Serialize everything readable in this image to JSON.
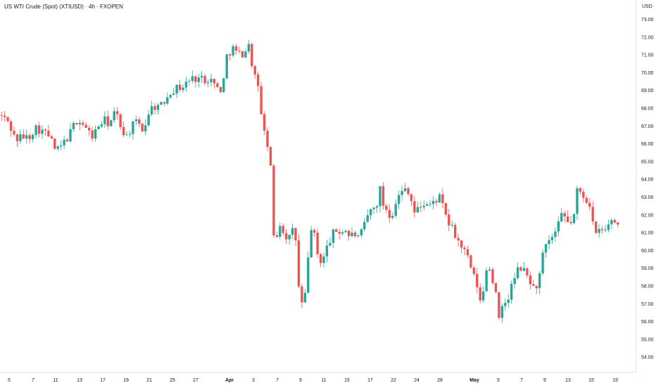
{
  "header": {
    "title": "US WTI Crude (Spot) (XTIUSD) · 4h · FXOPEN",
    "currency": "USD"
  },
  "colors": {
    "up": "#26a69a",
    "down": "#ef5350",
    "axis_text": "#131722",
    "axis_line": "#e0e3eb",
    "background": "#ffffff"
  },
  "chart_data": {
    "type": "candlestick",
    "title": "US WTI Crude (Spot) (XTIUSD) · 4h · FXOPEN",
    "timeframe": "4h",
    "ylabel": "USD",
    "ylim": [
      53.6,
      73.4
    ],
    "y_ticks": [
      "73.00",
      "72.00",
      "71.00",
      "70.00",
      "69.00",
      "68.00",
      "67.00",
      "66.00",
      "65.00",
      "64.00",
      "63.00",
      "62.00",
      "61.00",
      "60.00",
      "59.00",
      "58.00",
      "57.00",
      "56.00",
      "55.00",
      "54.00"
    ],
    "x_ticks": [
      "5",
      "7",
      "11",
      "13",
      "17",
      "19",
      "21",
      "25",
      "27",
      "Apr",
      "3",
      "7",
      "9",
      "11",
      "15",
      "17",
      "22",
      "24",
      "28",
      "May",
      "5",
      "7",
      "9",
      "13",
      "15",
      "19"
    ],
    "grid": false,
    "legend": "none",
    "path": [
      [
        0,
        67.6
      ],
      [
        12,
        67.2
      ],
      [
        22,
        66.2
      ],
      [
        32,
        66.4
      ],
      [
        40,
        66.3
      ],
      [
        50,
        66.9
      ],
      [
        60,
        66.7
      ],
      [
        70,
        66.4
      ],
      [
        80,
        65.5
      ],
      [
        92,
        66.1
      ],
      [
        100,
        66.6
      ],
      [
        108,
        67.3
      ],
      [
        116,
        67.2
      ],
      [
        124,
        66.7
      ],
      [
        132,
        66.4
      ],
      [
        140,
        67.0
      ],
      [
        148,
        67.3
      ],
      [
        156,
        67.1
      ],
      [
        164,
        67.8
      ],
      [
        172,
        66.9
      ],
      [
        180,
        66.4
      ],
      [
        188,
        67.0
      ],
      [
        196,
        67.2
      ],
      [
        204,
        66.7
      ],
      [
        212,
        67.9
      ],
      [
        220,
        68.1
      ],
      [
        230,
        68.1
      ],
      [
        240,
        68.9
      ],
      [
        250,
        69.1
      ],
      [
        260,
        69.2
      ],
      [
        270,
        69.6
      ],
      [
        280,
        69.7
      ],
      [
        290,
        69.6
      ],
      [
        298,
        69.7
      ],
      [
        306,
        69.2
      ],
      [
        316,
        69.0
      ],
      [
        322,
        70.9
      ],
      [
        330,
        71.4
      ],
      [
        338,
        71.0
      ],
      [
        346,
        71.1
      ],
      [
        354,
        71.5
      ],
      [
        358,
        70.5
      ],
      [
        362,
        69.8
      ],
      [
        366,
        69.2
      ],
      [
        370,
        68.3
      ],
      [
        374,
        66.6
      ],
      [
        378,
        66.3
      ],
      [
        382,
        65.5
      ],
      [
        386,
        63.9
      ],
      [
        388,
        60.9
      ],
      [
        392,
        60.5
      ],
      [
        396,
        61.7
      ],
      [
        400,
        61.2
      ],
      [
        404,
        61.0
      ],
      [
        408,
        60.7
      ],
      [
        412,
        60.7
      ],
      [
        416,
        61.1
      ],
      [
        420,
        60.6
      ],
      [
        424,
        58.0
      ],
      [
        428,
        57.0
      ],
      [
        432,
        56.9
      ],
      [
        436,
        58.5
      ],
      [
        440,
        60.8
      ],
      [
        444,
        61.7
      ],
      [
        448,
        60.3
      ],
      [
        452,
        59.6
      ],
      [
        456,
        59.4
      ],
      [
        460,
        59.6
      ],
      [
        464,
        60.1
      ],
      [
        470,
        60.7
      ],
      [
        476,
        61.1
      ],
      [
        484,
        61.0
      ],
      [
        490,
        61.2
      ],
      [
        496,
        60.8
      ],
      [
        504,
        60.9
      ],
      [
        510,
        60.6
      ],
      [
        516,
        61.2
      ],
      [
        522,
        61.9
      ],
      [
        528,
        62.3
      ],
      [
        534,
        62.4
      ],
      [
        540,
        63.4
      ],
      [
        544,
        62.6
      ],
      [
        548,
        62.4
      ],
      [
        552,
        62.1
      ],
      [
        556,
        61.8
      ],
      [
        560,
        62.6
      ],
      [
        566,
        63.0
      ],
      [
        572,
        63.3
      ],
      [
        578,
        63.6
      ],
      [
        584,
        62.9
      ],
      [
        588,
        62.1
      ],
      [
        594,
        62.3
      ],
      [
        600,
        62.6
      ],
      [
        606,
        62.6
      ],
      [
        612,
        62.5
      ],
      [
        618,
        62.8
      ],
      [
        624,
        63.0
      ],
      [
        630,
        62.3
      ],
      [
        636,
        61.6
      ],
      [
        642,
        61.2
      ],
      [
        648,
        60.7
      ],
      [
        654,
        60.3
      ],
      [
        660,
        59.9
      ],
      [
        666,
        59.4
      ],
      [
        672,
        58.6
      ],
      [
        676,
        58.1
      ],
      [
        680,
        57.9
      ],
      [
        684,
        56.4
      ],
      [
        688,
        58.3
      ],
      [
        692,
        59.2
      ],
      [
        696,
        58.9
      ],
      [
        700,
        58.3
      ],
      [
        704,
        58.0
      ],
      [
        708,
        55.9
      ],
      [
        712,
        56.4
      ],
      [
        716,
        57.1
      ],
      [
        720,
        57.0
      ],
      [
        726,
        57.9
      ],
      [
        732,
        58.5
      ],
      [
        738,
        59.1
      ],
      [
        744,
        58.8
      ],
      [
        748,
        58.6
      ],
      [
        752,
        58.4
      ],
      [
        756,
        57.9
      ],
      [
        760,
        57.8
      ],
      [
        766,
        58.4
      ],
      [
        772,
        59.9
      ],
      [
        778,
        60.3
      ],
      [
        784,
        60.7
      ],
      [
        790,
        61.0
      ],
      [
        796,
        61.7
      ],
      [
        800,
        62.1
      ],
      [
        804,
        61.6
      ],
      [
        810,
        61.5
      ],
      [
        816,
        62.0
      ],
      [
        820,
        63.3
      ],
      [
        826,
        63.2
      ],
      [
        832,
        62.9
      ],
      [
        838,
        62.6
      ],
      [
        842,
        61.6
      ],
      [
        846,
        60.7
      ],
      [
        850,
        61.1
      ],
      [
        856,
        61.1
      ],
      [
        862,
        61.1
      ],
      [
        868,
        61.8
      ],
      [
        872,
        61.6
      ],
      [
        876,
        61.5
      ],
      [
        880,
        61.4
      ]
    ],
    "candle_count": 198,
    "last_value": 61.45
  }
}
